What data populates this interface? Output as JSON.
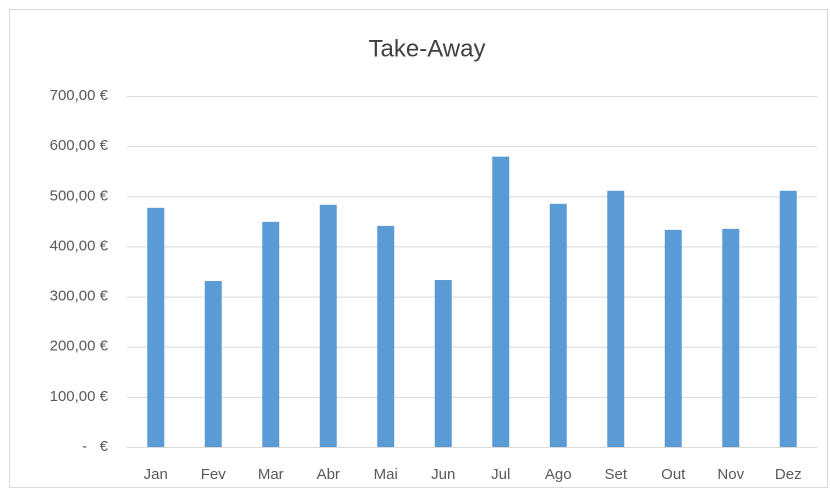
{
  "chart_data": {
    "type": "bar",
    "title": "Take-Away",
    "categories": [
      "Jan",
      "Fev",
      "Mar",
      "Abr",
      "Mai",
      "Jun",
      "Jul",
      "Ago",
      "Set",
      "Out",
      "Nov",
      "Dez"
    ],
    "values": [
      477,
      331,
      449,
      483,
      441,
      333,
      579,
      485,
      511,
      433,
      435,
      511
    ],
    "color": "#5b9bd5",
    "ylim": [
      0,
      700
    ],
    "yticks": [
      {
        "value": 0,
        "label": "-   €"
      },
      {
        "value": 100,
        "label": "100,00 €"
      },
      {
        "value": 200,
        "label": "200,00 €"
      },
      {
        "value": 300,
        "label": "300,00 €"
      },
      {
        "value": 400,
        "label": "400,00 €"
      },
      {
        "value": 500,
        "label": "500,00 €"
      },
      {
        "value": 600,
        "label": "600,00 €"
      },
      {
        "value": 700,
        "label": "700,00 €"
      }
    ],
    "grid": true
  }
}
